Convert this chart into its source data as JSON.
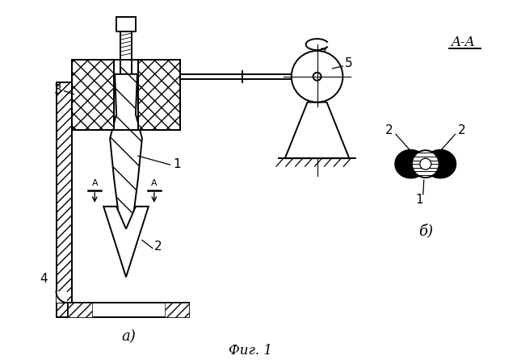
{
  "bg_color": "#ffffff",
  "line_color": "#000000",
  "title": "Фиг. 1",
  "label_a": "а)",
  "label_b": "б)",
  "label_aa": "A-A",
  "fig_width": 6.4,
  "fig_height": 4.51,
  "dpi": 100
}
